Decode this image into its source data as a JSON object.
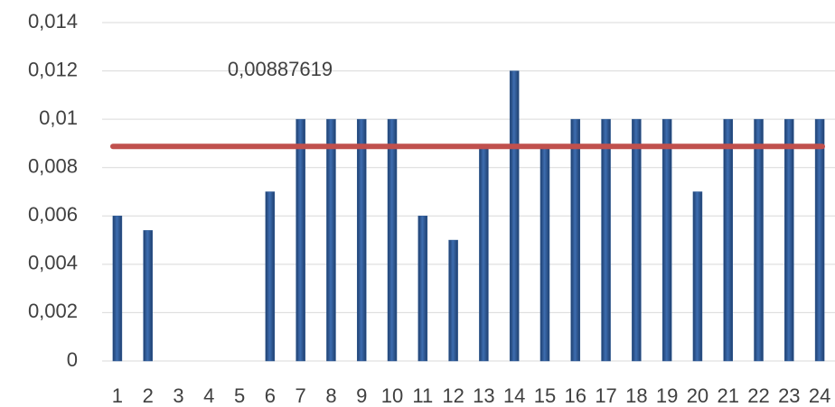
{
  "chart_data": {
    "type": "bar",
    "categories": [
      "1",
      "2",
      "3",
      "4",
      "5",
      "6",
      "7",
      "8",
      "9",
      "10",
      "11",
      "12",
      "13",
      "14",
      "15",
      "16",
      "17",
      "18",
      "19",
      "20",
      "21",
      "22",
      "23",
      "24"
    ],
    "values": [
      0.006,
      0.0054,
      0,
      0,
      0,
      0.007,
      0.01,
      0.01,
      0.01,
      0.01,
      0.006,
      0.005,
      0.0089,
      0.012,
      0.0089,
      0.01,
      0.01,
      0.01,
      0.01,
      0.007,
      0.01,
      0.01,
      0.01,
      0.01
    ],
    "color": "#2e5b96",
    "ylim": [
      0,
      0.014
    ],
    "yticks": [
      0,
      {
        "value": 0.002,
        "label": "0,002"
      },
      {
        "value": 0.004,
        "label": "0,004"
      },
      {
        "value": 0.006,
        "label": "0,006"
      },
      {
        "value": 0.008,
        "label": "0,008"
      },
      {
        "value": 0.01,
        "label": "0,01"
      },
      {
        "value": 0.012,
        "label": "0,012"
      },
      {
        "value": 0.014,
        "label": "0,014"
      }
    ],
    "grid": true,
    "reference_line": {
      "value": 0.00887619,
      "label": "0,00887619",
      "color": "#c0504d"
    }
  }
}
